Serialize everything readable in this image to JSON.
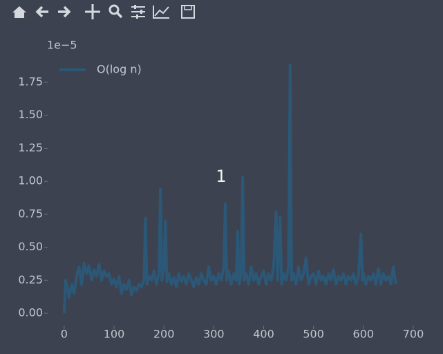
{
  "chart_data": {
    "type": "line",
    "offset_text": "1e−5",
    "annotation": "1",
    "x": [
      0,
      3,
      6,
      10,
      15,
      20,
      25,
      30,
      35,
      40,
      45,
      50,
      55,
      60,
      65,
      70,
      75,
      80,
      85,
      90,
      95,
      100,
      105,
      110,
      115,
      120,
      125,
      130,
      135,
      140,
      145,
      150,
      155,
      160,
      163,
      166,
      170,
      175,
      180,
      185,
      190,
      193,
      196,
      200,
      203,
      206,
      210,
      215,
      220,
      225,
      230,
      235,
      240,
      245,
      250,
      255,
      260,
      265,
      270,
      275,
      280,
      285,
      290,
      295,
      300,
      305,
      310,
      315,
      320,
      323,
      326,
      330,
      335,
      340,
      345,
      348,
      351,
      355,
      358,
      361,
      365,
      370,
      375,
      380,
      385,
      390,
      395,
      400,
      405,
      410,
      415,
      420,
      425,
      428,
      433,
      436,
      440,
      445,
      450,
      453,
      456,
      460,
      465,
      470,
      475,
      480,
      485,
      490,
      495,
      500,
      505,
      510,
      515,
      520,
      525,
      530,
      535,
      540,
      545,
      550,
      555,
      560,
      565,
      570,
      575,
      580,
      585,
      590,
      595,
      598,
      600,
      605,
      610,
      615,
      620,
      625,
      630,
      635,
      640,
      645,
      650,
      655,
      660,
      665
    ],
    "series": [
      {
        "name": "O(log n)",
        "color": "#2c5877",
        "values": [
          0.0,
          0.25,
          0.2,
          0.12,
          0.22,
          0.15,
          0.28,
          0.35,
          0.22,
          0.38,
          0.3,
          0.36,
          0.25,
          0.33,
          0.28,
          0.37,
          0.25,
          0.32,
          0.28,
          0.3,
          0.22,
          0.26,
          0.2,
          0.28,
          0.15,
          0.22,
          0.18,
          0.25,
          0.14,
          0.2,
          0.17,
          0.22,
          0.2,
          0.25,
          0.72,
          0.22,
          0.28,
          0.25,
          0.32,
          0.22,
          0.3,
          0.94,
          0.25,
          0.35,
          0.7,
          0.24,
          0.3,
          0.22,
          0.27,
          0.2,
          0.3,
          0.24,
          0.28,
          0.22,
          0.3,
          0.25,
          0.2,
          0.27,
          0.22,
          0.3,
          0.25,
          0.22,
          0.35,
          0.25,
          0.28,
          0.22,
          0.3,
          0.25,
          0.35,
          0.83,
          0.25,
          0.32,
          0.22,
          0.3,
          0.25,
          0.62,
          0.22,
          0.3,
          1.03,
          0.25,
          0.3,
          0.22,
          0.35,
          0.25,
          0.3,
          0.22,
          0.28,
          0.32,
          0.22,
          0.3,
          0.25,
          0.35,
          0.77,
          0.25,
          0.73,
          0.22,
          0.3,
          0.25,
          0.35,
          1.88,
          0.25,
          0.3,
          0.22,
          0.35,
          0.25,
          0.3,
          0.42,
          0.22,
          0.28,
          0.3,
          0.22,
          0.32,
          0.25,
          0.28,
          0.22,
          0.3,
          0.25,
          0.33,
          0.22,
          0.28,
          0.25,
          0.3,
          0.22,
          0.28,
          0.25,
          0.3,
          0.22,
          0.28,
          0.6,
          0.25,
          0.3,
          0.22,
          0.28,
          0.25,
          0.3,
          0.22,
          0.34,
          0.22,
          0.3,
          0.25,
          0.28,
          0.22,
          0.35,
          0.22
        ]
      }
    ],
    "xlim": [
      -33,
      698
    ],
    "ylim": [
      -0.094,
      1.97
    ],
    "xticks": [
      0,
      100,
      200,
      300,
      400,
      500,
      600,
      700
    ],
    "yticks": [
      {
        "value": 0,
        "label": "0.00"
      },
      0.25,
      {
        "value": 0.5,
        "label": "0.50"
      },
      0.75,
      {
        "value": 1,
        "label": "1.00"
      },
      1.25,
      {
        "value": 1.5,
        "label": "1.50"
      },
      1.75
    ],
    "legend": "upper left"
  }
}
